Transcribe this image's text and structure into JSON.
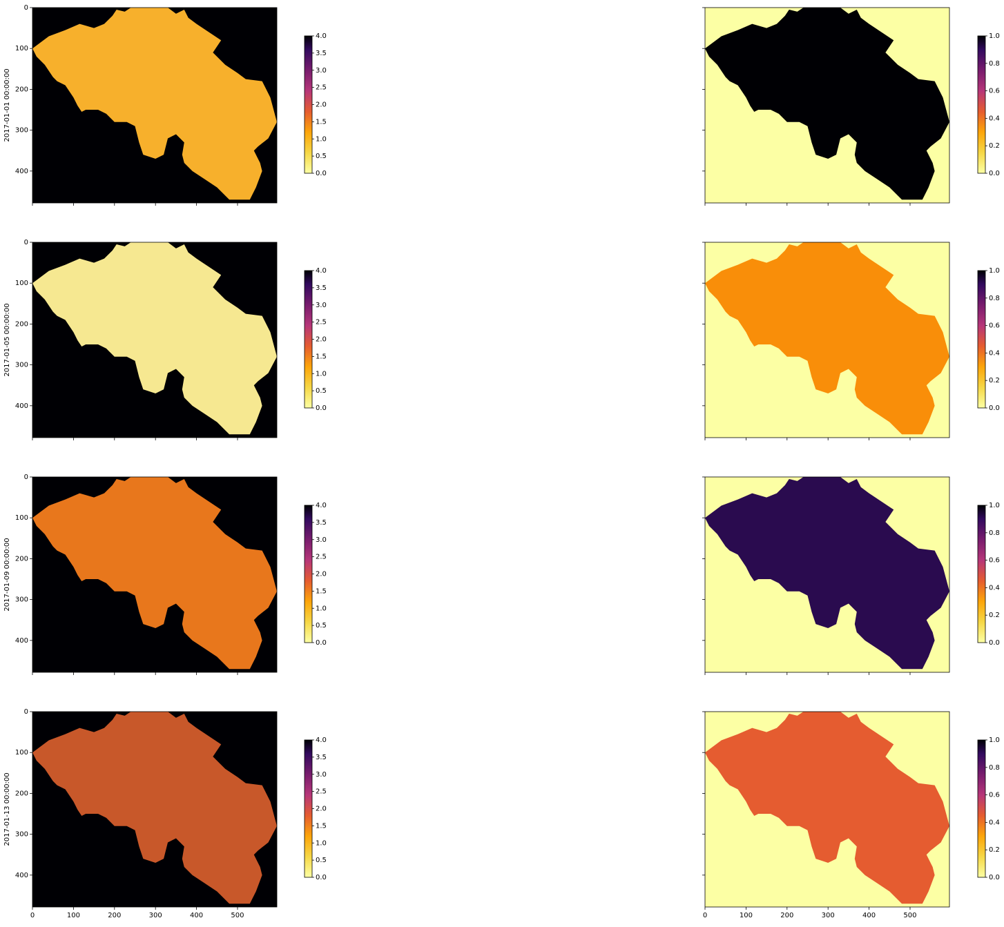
{
  "chart_data": [
    {
      "type": "image",
      "ylabel": "2017-01-01 00:00:00",
      "xlim": [
        0,
        596
      ],
      "ylim": [
        478,
        0
      ],
      "xticks": [
        0,
        100,
        200,
        300,
        400,
        500
      ],
      "yticks": [
        0,
        100,
        200,
        300,
        400
      ],
      "clim": [
        0,
        4
      ],
      "cticks": [
        {
          "value": 0,
          "label": "0.0"
        },
        {
          "value": 0.5,
          "label": "0.5"
        },
        {
          "value": 1,
          "label": "1.0"
        },
        {
          "value": 1.5,
          "label": "1.5"
        },
        {
          "value": 2,
          "label": "2.0"
        },
        {
          "value": 2.5,
          "label": "2.5"
        },
        {
          "value": 3,
          "label": "3.0"
        },
        {
          "value": 3.5,
          "label": "3.5"
        },
        {
          "value": 4,
          "label": "4.0"
        }
      ],
      "colormap": "inferno_r"
    },
    {
      "type": "image",
      "xlim": [
        0,
        596
      ],
      "ylim": [
        478,
        0
      ],
      "xticks": [
        0,
        100,
        200,
        300,
        400,
        500
      ],
      "yticks": [
        0,
        100,
        200,
        300,
        400
      ],
      "clim": [
        0,
        1
      ],
      "cticks": [
        {
          "value": 0,
          "label": "0.0"
        },
        {
          "value": 0.2,
          "label": "0.2"
        },
        {
          "value": 0.4,
          "label": "0.4"
        },
        {
          "value": 0.6,
          "label": "0.6"
        },
        {
          "value": 0.8,
          "label": "0.8"
        },
        {
          "value": 1,
          "label": "1.0"
        }
      ],
      "colormap": "inferno_r"
    },
    {
      "type": "image",
      "ylabel": "2017-01-05 00:00:00",
      "xlim": [
        0,
        596
      ],
      "ylim": [
        478,
        0
      ],
      "xticks": [
        0,
        100,
        200,
        300,
        400,
        500
      ],
      "yticks": [
        0,
        100,
        200,
        300,
        400
      ],
      "clim": [
        0,
        4
      ],
      "cticks": [
        {
          "value": 0,
          "label": "0.0"
        },
        {
          "value": 0.5,
          "label": "0.5"
        },
        {
          "value": 1,
          "label": "1.0"
        },
        {
          "value": 1.5,
          "label": "1.5"
        },
        {
          "value": 2,
          "label": "2.0"
        },
        {
          "value": 2.5,
          "label": "2.5"
        },
        {
          "value": 3,
          "label": "3.0"
        },
        {
          "value": 3.5,
          "label": "3.5"
        },
        {
          "value": 4,
          "label": "4.0"
        }
      ],
      "colormap": "inferno_r"
    },
    {
      "type": "image",
      "xlim": [
        0,
        596
      ],
      "ylim": [
        478,
        0
      ],
      "xticks": [
        0,
        100,
        200,
        300,
        400,
        500
      ],
      "yticks": [
        0,
        100,
        200,
        300,
        400
      ],
      "clim": [
        0,
        1
      ],
      "cticks": [
        {
          "value": 0,
          "label": "0.0"
        },
        {
          "value": 0.2,
          "label": "0.2"
        },
        {
          "value": 0.4,
          "label": "0.4"
        },
        {
          "value": 0.6,
          "label": "0.6"
        },
        {
          "value": 0.8,
          "label": "0.8"
        },
        {
          "value": 1,
          "label": "1.0"
        }
      ],
      "colormap": "inferno_r"
    },
    {
      "type": "image",
      "ylabel": "2017-01-09 00:00:00",
      "xlim": [
        0,
        596
      ],
      "ylim": [
        478,
        0
      ],
      "xticks": [
        0,
        100,
        200,
        300,
        400,
        500
      ],
      "yticks": [
        0,
        100,
        200,
        300,
        400
      ],
      "clim": [
        0,
        4
      ],
      "cticks": [
        {
          "value": 0,
          "label": "0.0"
        },
        {
          "value": 0.5,
          "label": "0.5"
        },
        {
          "value": 1,
          "label": "1.0"
        },
        {
          "value": 1.5,
          "label": "1.5"
        },
        {
          "value": 2,
          "label": "2.0"
        },
        {
          "value": 2.5,
          "label": "2.5"
        },
        {
          "value": 3,
          "label": "3.0"
        },
        {
          "value": 3.5,
          "label": "3.5"
        },
        {
          "value": 4,
          "label": "4.0"
        }
      ],
      "colormap": "inferno_r"
    },
    {
      "type": "image",
      "xlim": [
        0,
        596
      ],
      "ylim": [
        478,
        0
      ],
      "xticks": [
        0,
        100,
        200,
        300,
        400,
        500
      ],
      "yticks": [
        0,
        100,
        200,
        300,
        400
      ],
      "clim": [
        0,
        1
      ],
      "cticks": [
        {
          "value": 0,
          "label": "0.0"
        },
        {
          "value": 0.2,
          "label": "0.2"
        },
        {
          "value": 0.4,
          "label": "0.4"
        },
        {
          "value": 0.6,
          "label": "0.6"
        },
        {
          "value": 0.8,
          "label": "0.8"
        },
        {
          "value": 1,
          "label": "1.0"
        }
      ],
      "colormap": "inferno_r"
    },
    {
      "type": "image",
      "ylabel": "2017-01-13 00:00:00",
      "xlim": [
        0,
        596
      ],
      "ylim": [
        478,
        0
      ],
      "xticks": [
        0,
        100,
        200,
        300,
        400,
        500
      ],
      "yticks": [
        0,
        100,
        200,
        300,
        400
      ],
      "clim": [
        0,
        4
      ],
      "cticks": [
        {
          "value": 0,
          "label": "0.0"
        },
        {
          "value": 0.5,
          "label": "0.5"
        },
        {
          "value": 1,
          "label": "1.0"
        },
        {
          "value": 1.5,
          "label": "1.5"
        },
        {
          "value": 2,
          "label": "2.0"
        },
        {
          "value": 2.5,
          "label": "2.5"
        },
        {
          "value": 3,
          "label": "3.0"
        },
        {
          "value": 3.5,
          "label": "3.5"
        },
        {
          "value": 4,
          "label": "4.0"
        }
      ],
      "colormap": "inferno_r"
    },
    {
      "type": "image",
      "xlim": [
        0,
        596
      ],
      "ylim": [
        478,
        0
      ],
      "xticks": [
        0,
        100,
        200,
        300,
        400,
        500
      ],
      "yticks": [
        0,
        100,
        200,
        300,
        400
      ],
      "clim": [
        0,
        1
      ],
      "cticks": [
        {
          "value": 0,
          "label": "0.0"
        },
        {
          "value": 0.2,
          "label": "0.2"
        },
        {
          "value": 0.4,
          "label": "0.4"
        },
        {
          "value": 0.6,
          "label": "0.6"
        },
        {
          "value": 0.8,
          "label": "0.8"
        },
        {
          "value": 1,
          "label": "1.0"
        }
      ],
      "colormap": "inferno_r"
    }
  ]
}
